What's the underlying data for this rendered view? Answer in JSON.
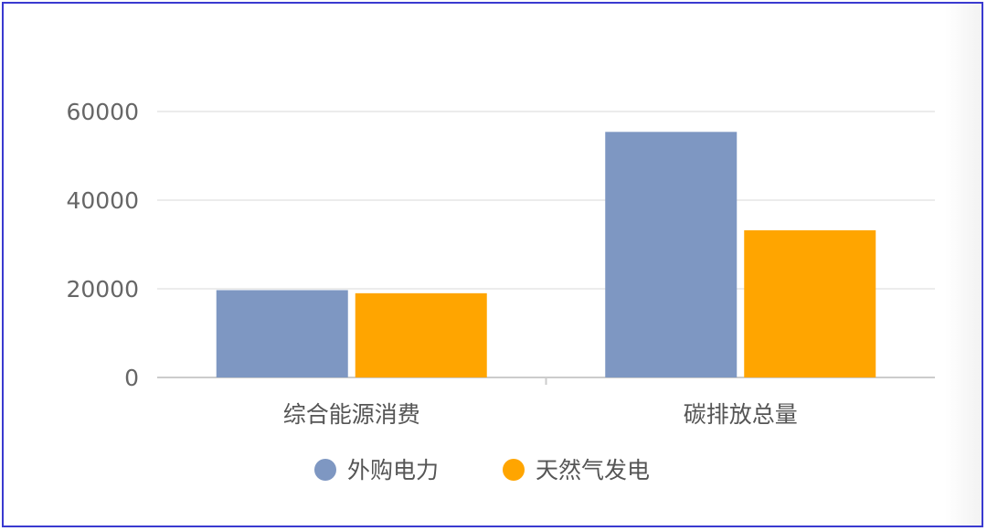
{
  "chart_data": {
    "type": "bar",
    "categories": [
      "综合能源消费",
      "碳排放总量"
    ],
    "series": [
      {
        "name": "外购电力",
        "values": [
          19700,
          55400
        ],
        "color": "#7e97c2"
      },
      {
        "name": "天然气发电",
        "values": [
          19000,
          33200
        ],
        "color": "#ffa500"
      }
    ],
    "yticks": [
      "0",
      "20000",
      "40000",
      "60000"
    ],
    "ylim": [
      0,
      60000
    ],
    "grid": true,
    "legend": "bottom-center",
    "title": "",
    "xlabel": "",
    "ylabel": ""
  }
}
